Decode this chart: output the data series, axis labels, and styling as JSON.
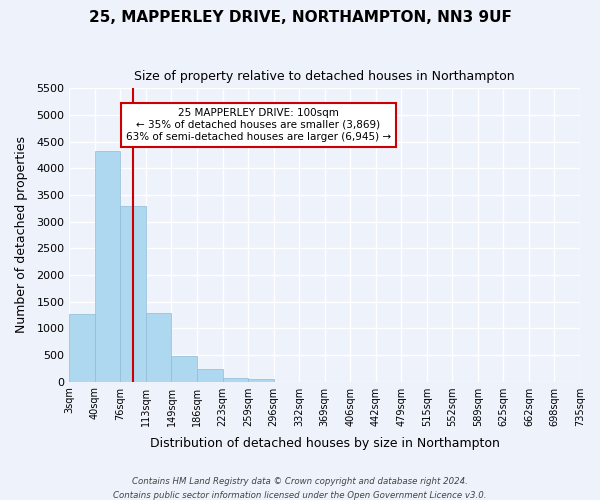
{
  "title": "25, MAPPERLEY DRIVE, NORTHAMPTON, NN3 9UF",
  "subtitle": "Size of property relative to detached houses in Northampton",
  "xlabel": "Distribution of detached houses by size in Northampton",
  "ylabel": "Number of detached properties",
  "bar_values": [
    1270,
    4330,
    3290,
    1290,
    480,
    240,
    75,
    50,
    0,
    0,
    0,
    0,
    0,
    0,
    0,
    0,
    0,
    0,
    0,
    0
  ],
  "tick_labels": [
    "3sqm",
    "40sqm",
    "76sqm",
    "113sqm",
    "149sqm",
    "186sqm",
    "223sqm",
    "259sqm",
    "296sqm",
    "332sqm",
    "369sqm",
    "406sqm",
    "442sqm",
    "479sqm",
    "515sqm",
    "552sqm",
    "589sqm",
    "625sqm",
    "662sqm",
    "698sqm",
    "735sqm"
  ],
  "bar_color": "#add8f0",
  "bar_edge_color": "#90bcd8",
  "vline_color": "#cc0000",
  "vline_pos": 2.5,
  "annotation_title": "25 MAPPERLEY DRIVE: 100sqm",
  "annotation_line1": "← 35% of detached houses are smaller (3,869)",
  "annotation_line2": "63% of semi-detached houses are larger (6,945) →",
  "annotation_box_color": "#ffffff",
  "annotation_box_edge": "#cc0000",
  "ylim": [
    0,
    5500
  ],
  "yticks": [
    0,
    500,
    1000,
    1500,
    2000,
    2500,
    3000,
    3500,
    4000,
    4500,
    5000,
    5500
  ],
  "footer1": "Contains HM Land Registry data © Crown copyright and database right 2024.",
  "footer2": "Contains public sector information licensed under the Open Government Licence v3.0.",
  "bg_color": "#eef2fb",
  "grid_color": "#ffffff"
}
